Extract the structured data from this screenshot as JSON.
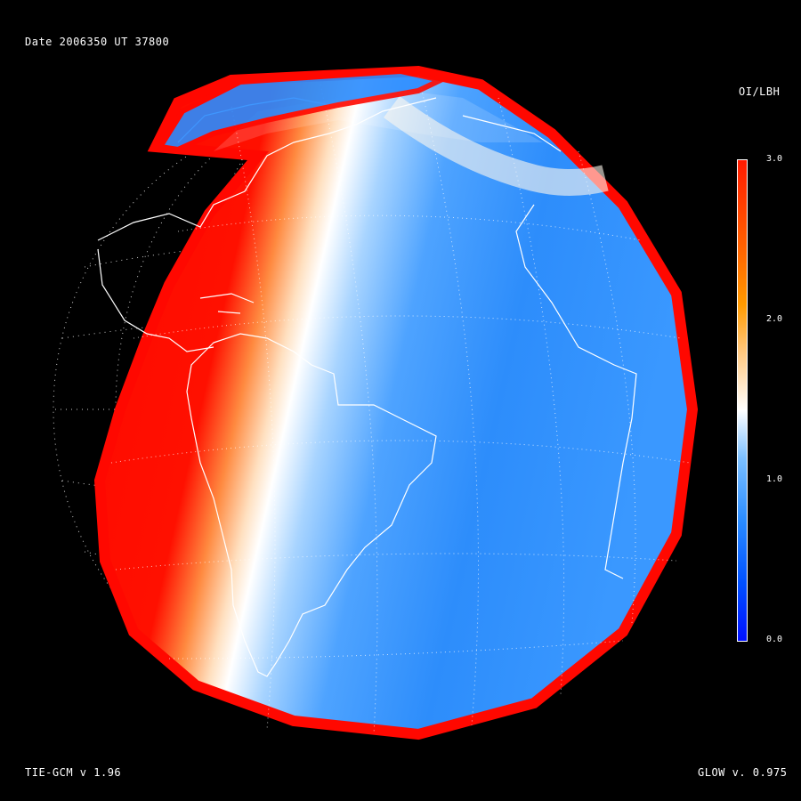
{
  "header": {
    "date_label": "Date 2006350   UT 37800"
  },
  "colorbar": {
    "title": "OI/LBH",
    "ticks": [
      "3.0",
      "2.0",
      "1.0",
      "0.0"
    ],
    "range": [
      0.0,
      3.0
    ],
    "colors": [
      "#0010ff",
      "#2a8cff",
      "#ffffff",
      "#ff9a00",
      "#ff1a00"
    ]
  },
  "footer": {
    "model_left": "TIE-GCM v 1.96",
    "model_right": "GLOW v. 0.975"
  },
  "map": {
    "projection": "orthographic globe view centered on South America / Atlantic",
    "colors": {
      "background": "#000000",
      "coastlines": "#ffffff",
      "grid": "#ffffff"
    }
  }
}
